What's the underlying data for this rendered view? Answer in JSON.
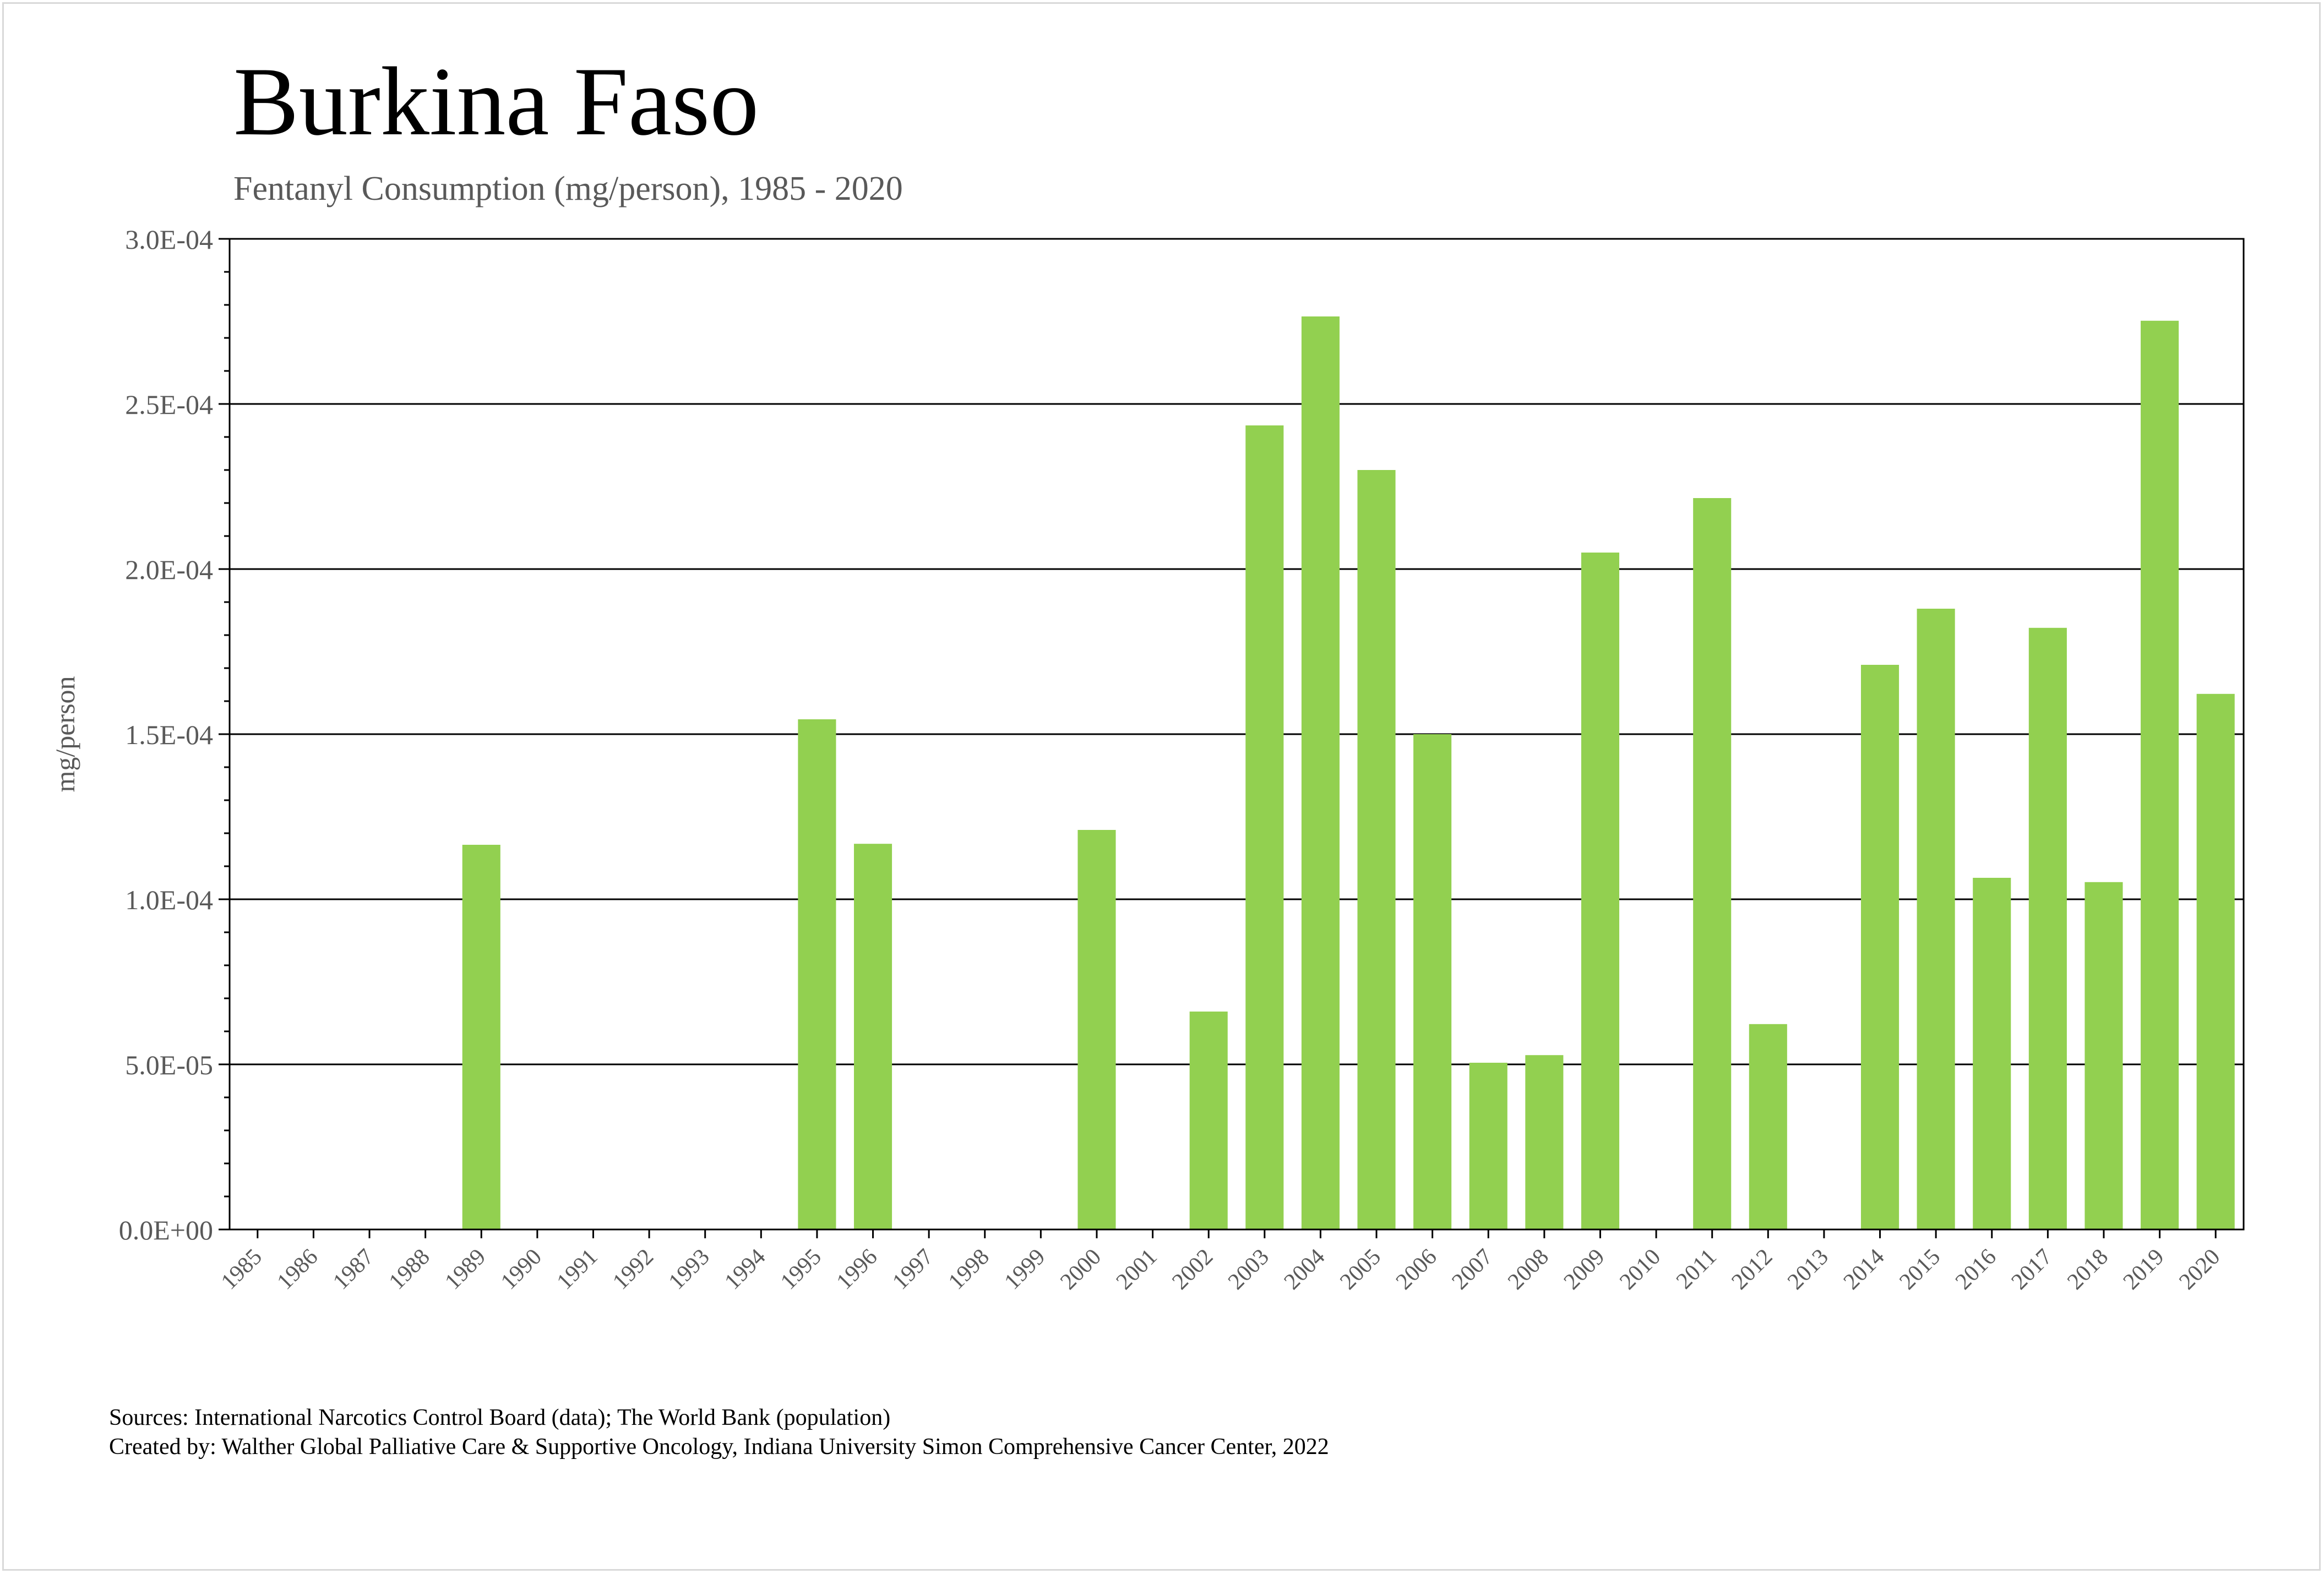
{
  "title": "Burkina Faso",
  "subtitle": "Fentanyl Consumption (mg/person), 1985 - 2020",
  "sources": {
    "line1": "Sources: International Narcotics Control Board (data); The World Bank (population)",
    "line2": "Created by: Walther Global Palliative Care & Supportive Oncology, Indiana University Simon Comprehensive Cancer Center, 2022"
  },
  "colors": {
    "bar": "#92d050",
    "axis": "#000000",
    "grid": "#000000",
    "text": "#595959"
  },
  "chart_data": {
    "type": "bar",
    "title": "Burkina Faso",
    "subtitle": "Fentanyl Consumption (mg/person), 1985 - 2020",
    "xlabel": "",
    "ylabel": "mg/person",
    "ylim": [
      0,
      0.0003
    ],
    "grid": true,
    "yticks": [
      "0.0E+00",
      "5.0E-05",
      "1.0E-04",
      "1.5E-04",
      "2.0E-04",
      "2.5E-04",
      "3.0E-04"
    ],
    "categories": [
      "1985",
      "1986",
      "1987",
      "1988",
      "1989",
      "1990",
      "1991",
      "1992",
      "1993",
      "1994",
      "1995",
      "1996",
      "1997",
      "1998",
      "1999",
      "2000",
      "2001",
      "2002",
      "2003",
      "2004",
      "2005",
      "2006",
      "2007",
      "2008",
      "2009",
      "2010",
      "2011",
      "2012",
      "2013",
      "2014",
      "2015",
      "2016",
      "2017",
      "2018",
      "2019",
      "2020"
    ],
    "values": [
      0,
      0,
      0,
      0,
      0.0001165,
      0,
      0,
      0,
      0,
      0,
      0.0001545,
      0.0001168,
      0,
      0,
      0,
      0.000121,
      0,
      6.6e-05,
      0.0002435,
      0.0002765,
      0.00023,
      0.00015,
      5.05e-05,
      5.28e-05,
      0.000205,
      0,
      0.0002215,
      6.22e-05,
      0,
      0.000171,
      0.000188,
      0.0001065,
      0.0001822,
      0.0001052,
      0.0002752,
      0.0001622
    ]
  }
}
